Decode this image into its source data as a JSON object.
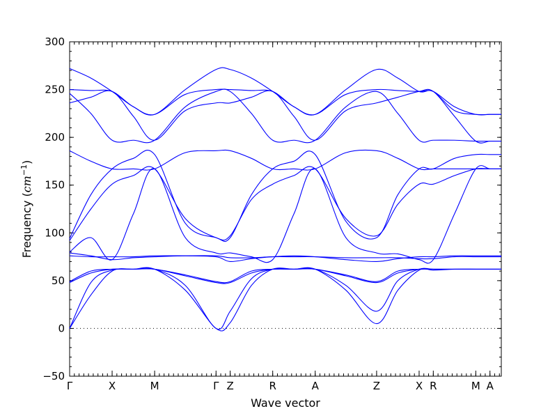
{
  "chart_data": {
    "type": "line",
    "title": "",
    "xlabel": "Wave vector",
    "ylabel_text": "Frequency (",
    "ylabel_math": "cm",
    "ylabel_exp": "−1",
    "ylabel_close": ")",
    "ylim": [
      -50,
      300
    ],
    "yticks": [
      -50,
      0,
      50,
      100,
      150,
      200,
      250,
      300
    ],
    "ytick_labels": [
      "−50",
      "0",
      "50",
      "100",
      "150",
      "200",
      "250",
      "300"
    ],
    "xlim": [
      0,
      9.14
    ],
    "xticks": [
      {
        "label": "Γ",
        "x": 0
      },
      {
        "label": "X",
        "x": 0.9
      },
      {
        "label": "M",
        "x": 1.8
      },
      {
        "label": "Γ",
        "x": 3.1
      },
      {
        "label": "Z",
        "x": 3.4
      },
      {
        "label": "R",
        "x": 4.3
      },
      {
        "label": "A",
        "x": 5.2
      },
      {
        "label": "Z",
        "x": 6.5
      },
      {
        "label": "X",
        "x": 7.4
      },
      {
        "label": "R",
        "x": 7.7
      },
      {
        "label": "M",
        "x": 8.6
      },
      {
        "label": "A",
        "x": 8.9
      }
    ],
    "zero_line": true,
    "series_color": "#0000ff",
    "series": [
      {
        "x": [
          0,
          0.45,
          0.9,
          1.35,
          1.8,
          2.45,
          3.1,
          3.4,
          3.85,
          4.3,
          4.75,
          5.2,
          5.85,
          6.5,
          6.95,
          7.4,
          7.7,
          8.15,
          8.6,
          8.9,
          9.14
        ],
        "values": [
          272,
          262,
          248,
          232,
          224,
          250,
          271,
          271,
          262,
          248,
          232,
          224,
          250,
          271,
          262,
          248,
          248,
          228,
          224,
          224,
          224
        ]
      },
      {
        "x": [
          0,
          0.45,
          0.9,
          1.35,
          1.8,
          2.45,
          3.1,
          3.4,
          3.85,
          4.3,
          4.75,
          5.2,
          5.85,
          6.5,
          6.95,
          7.4,
          7.7,
          8.15,
          8.6,
          8.9,
          9.14
        ],
        "values": [
          250,
          249,
          248,
          232,
          224,
          245,
          250,
          250,
          249,
          248,
          232,
          224,
          245,
          250,
          249,
          248,
          248,
          232,
          224,
          224,
          224
        ]
      },
      {
        "x": [
          0,
          0.45,
          0.9,
          1.35,
          1.8,
          2.45,
          3.1,
          3.4,
          3.85,
          4.3,
          4.75,
          5.2,
          5.85,
          6.5,
          6.95,
          7.4,
          7.7,
          8.15,
          8.6,
          8.9,
          9.14
        ],
        "values": [
          246,
          225,
          197,
          197,
          197,
          232,
          248,
          248,
          225,
          197,
          197,
          197,
          232,
          248,
          225,
          197,
          197,
          197,
          196,
          196,
          196
        ]
      },
      {
        "x": [
          0,
          0.45,
          0.9,
          1.35,
          1.8,
          2.45,
          3.1,
          3.4,
          3.85,
          4.3,
          4.75,
          5.2,
          5.85,
          6.5,
          6.95,
          7.4,
          7.7,
          8.15,
          8.6,
          8.9,
          9.14
        ],
        "values": [
          236,
          242,
          248,
          222,
          197,
          228,
          236,
          236,
          242,
          248,
          222,
          197,
          228,
          236,
          242,
          248,
          248,
          222,
          196,
          196,
          196
        ]
      },
      {
        "x": [
          0,
          0.45,
          0.9,
          1.35,
          1.8,
          2.45,
          3.1,
          3.4,
          3.85,
          4.3,
          4.75,
          5.2,
          5.85,
          6.5,
          6.95,
          7.4,
          7.7,
          8.15,
          8.6,
          8.9,
          9.14
        ],
        "values": [
          186,
          175,
          167,
          167,
          167,
          184,
          186,
          186,
          178,
          167,
          167,
          167,
          184,
          186,
          178,
          167,
          167,
          167,
          167,
          167,
          167
        ]
      },
      {
        "x": [
          0,
          0.45,
          0.9,
          1.35,
          1.8,
          2.45,
          3.1,
          3.4,
          3.85,
          4.3,
          4.75,
          5.2,
          5.85,
          6.5,
          6.95,
          7.4,
          7.7,
          8.15,
          8.6,
          8.9,
          9.14
        ],
        "values": [
          94,
          140,
          167,
          178,
          182,
          110,
          95,
          95,
          140,
          167,
          175,
          182,
          112,
          95,
          140,
          167,
          167,
          178,
          182,
          182,
          182
        ]
      },
      {
        "x": [
          0,
          0.45,
          0.9,
          1.35,
          1.8,
          2.45,
          3.1,
          3.4,
          3.85,
          4.3,
          4.75,
          5.2,
          5.85,
          6.5,
          6.95,
          7.4,
          7.7,
          8.15,
          8.6,
          8.9,
          9.14
        ],
        "values": [
          92,
          125,
          151,
          160,
          167,
          115,
          95,
          97,
          135,
          151,
          160,
          167,
          115,
          97,
          130,
          151,
          151,
          160,
          167,
          167,
          167
        ]
      },
      {
        "x": [
          0,
          0.45,
          0.9,
          1.35,
          1.8,
          2.45,
          3.1,
          3.4,
          3.85,
          4.3,
          4.75,
          5.2,
          5.85,
          6.5,
          6.95,
          7.4,
          7.7,
          8.15,
          8.6,
          8.9,
          9.14
        ],
        "values": [
          80,
          95,
          72,
          120,
          167,
          95,
          79,
          79,
          75,
          72,
          120,
          167,
          95,
          79,
          78,
          72,
          72,
          120,
          167,
          167,
          167
        ]
      },
      {
        "x": [
          0,
          0.45,
          0.9,
          1.35,
          1.8,
          2.45,
          3.1,
          3.4,
          3.85,
          4.3,
          4.75,
          5.2,
          5.85,
          6.5,
          6.95,
          7.4,
          7.7,
          8.15,
          8.6,
          8.9,
          9.14
        ],
        "values": [
          76,
          75,
          75,
          75,
          76,
          76,
          75,
          70,
          73,
          75,
          76,
          75,
          72,
          70,
          73,
          75,
          75,
          76,
          76,
          76,
          76
        ]
      },
      {
        "x": [
          0,
          0.45,
          0.9,
          1.35,
          1.8,
          2.45,
          3.1,
          3.4,
          3.85,
          4.3,
          4.75,
          5.2,
          5.85,
          6.5,
          6.95,
          7.4,
          7.7,
          8.15,
          8.6,
          8.9,
          9.14
        ],
        "values": [
          79,
          76,
          72,
          74,
          75,
          76,
          76,
          74,
          74,
          75,
          75,
          75,
          74,
          74,
          74,
          73,
          73,
          75,
          75,
          75,
          75
        ]
      },
      {
        "x": [
          0,
          0.45,
          0.9,
          1.35,
          1.8,
          2.45,
          3.1,
          3.4,
          3.85,
          4.3,
          4.75,
          5.2,
          5.85,
          6.5,
          6.95,
          7.4,
          7.7,
          8.15,
          8.6,
          8.9,
          9.14
        ],
        "values": [
          48,
          58,
          62,
          62,
          62,
          55,
          48,
          48,
          58,
          62,
          62,
          62,
          55,
          48,
          58,
          62,
          62,
          62,
          62,
          62,
          62
        ]
      },
      {
        "x": [
          0,
          0.45,
          0.9,
          1.35,
          1.8,
          2.45,
          3.1,
          3.4,
          3.85,
          4.3,
          4.75,
          5.2,
          5.85,
          6.5,
          6.95,
          7.4,
          7.7,
          8.15,
          8.6,
          8.9,
          9.14
        ],
        "values": [
          49,
          60,
          62,
          62,
          62,
          56,
          49,
          49,
          60,
          62,
          62,
          62,
          56,
          49,
          60,
          62,
          62,
          62,
          62,
          62,
          62
        ]
      },
      {
        "x": [
          0,
          0.45,
          0.9,
          1.35,
          1.8,
          2.45,
          3.1,
          3.4,
          3.85,
          4.3,
          4.75,
          5.2,
          5.85,
          6.5,
          6.95,
          7.4,
          7.7,
          8.15,
          8.6,
          8.9,
          9.14
        ],
        "values": [
          0,
          35,
          60,
          62,
          62,
          40,
          0,
          6,
          45,
          62,
          62,
          62,
          40,
          5,
          40,
          61,
          61,
          62,
          62,
          62,
          62
        ]
      },
      {
        "x": [
          0,
          0.45,
          0.9,
          1.35,
          1.8,
          2.45,
          3.1,
          3.4,
          3.85,
          4.3,
          4.75,
          5.2,
          5.85,
          6.5,
          6.95,
          7.4,
          7.7,
          8.15,
          8.6,
          8.9,
          9.14
        ],
        "values": [
          0,
          48,
          61,
          62,
          62,
          45,
          0,
          18,
          52,
          62,
          62,
          62,
          45,
          18,
          50,
          62,
          62,
          62,
          62,
          62,
          62
        ]
      }
    ]
  }
}
